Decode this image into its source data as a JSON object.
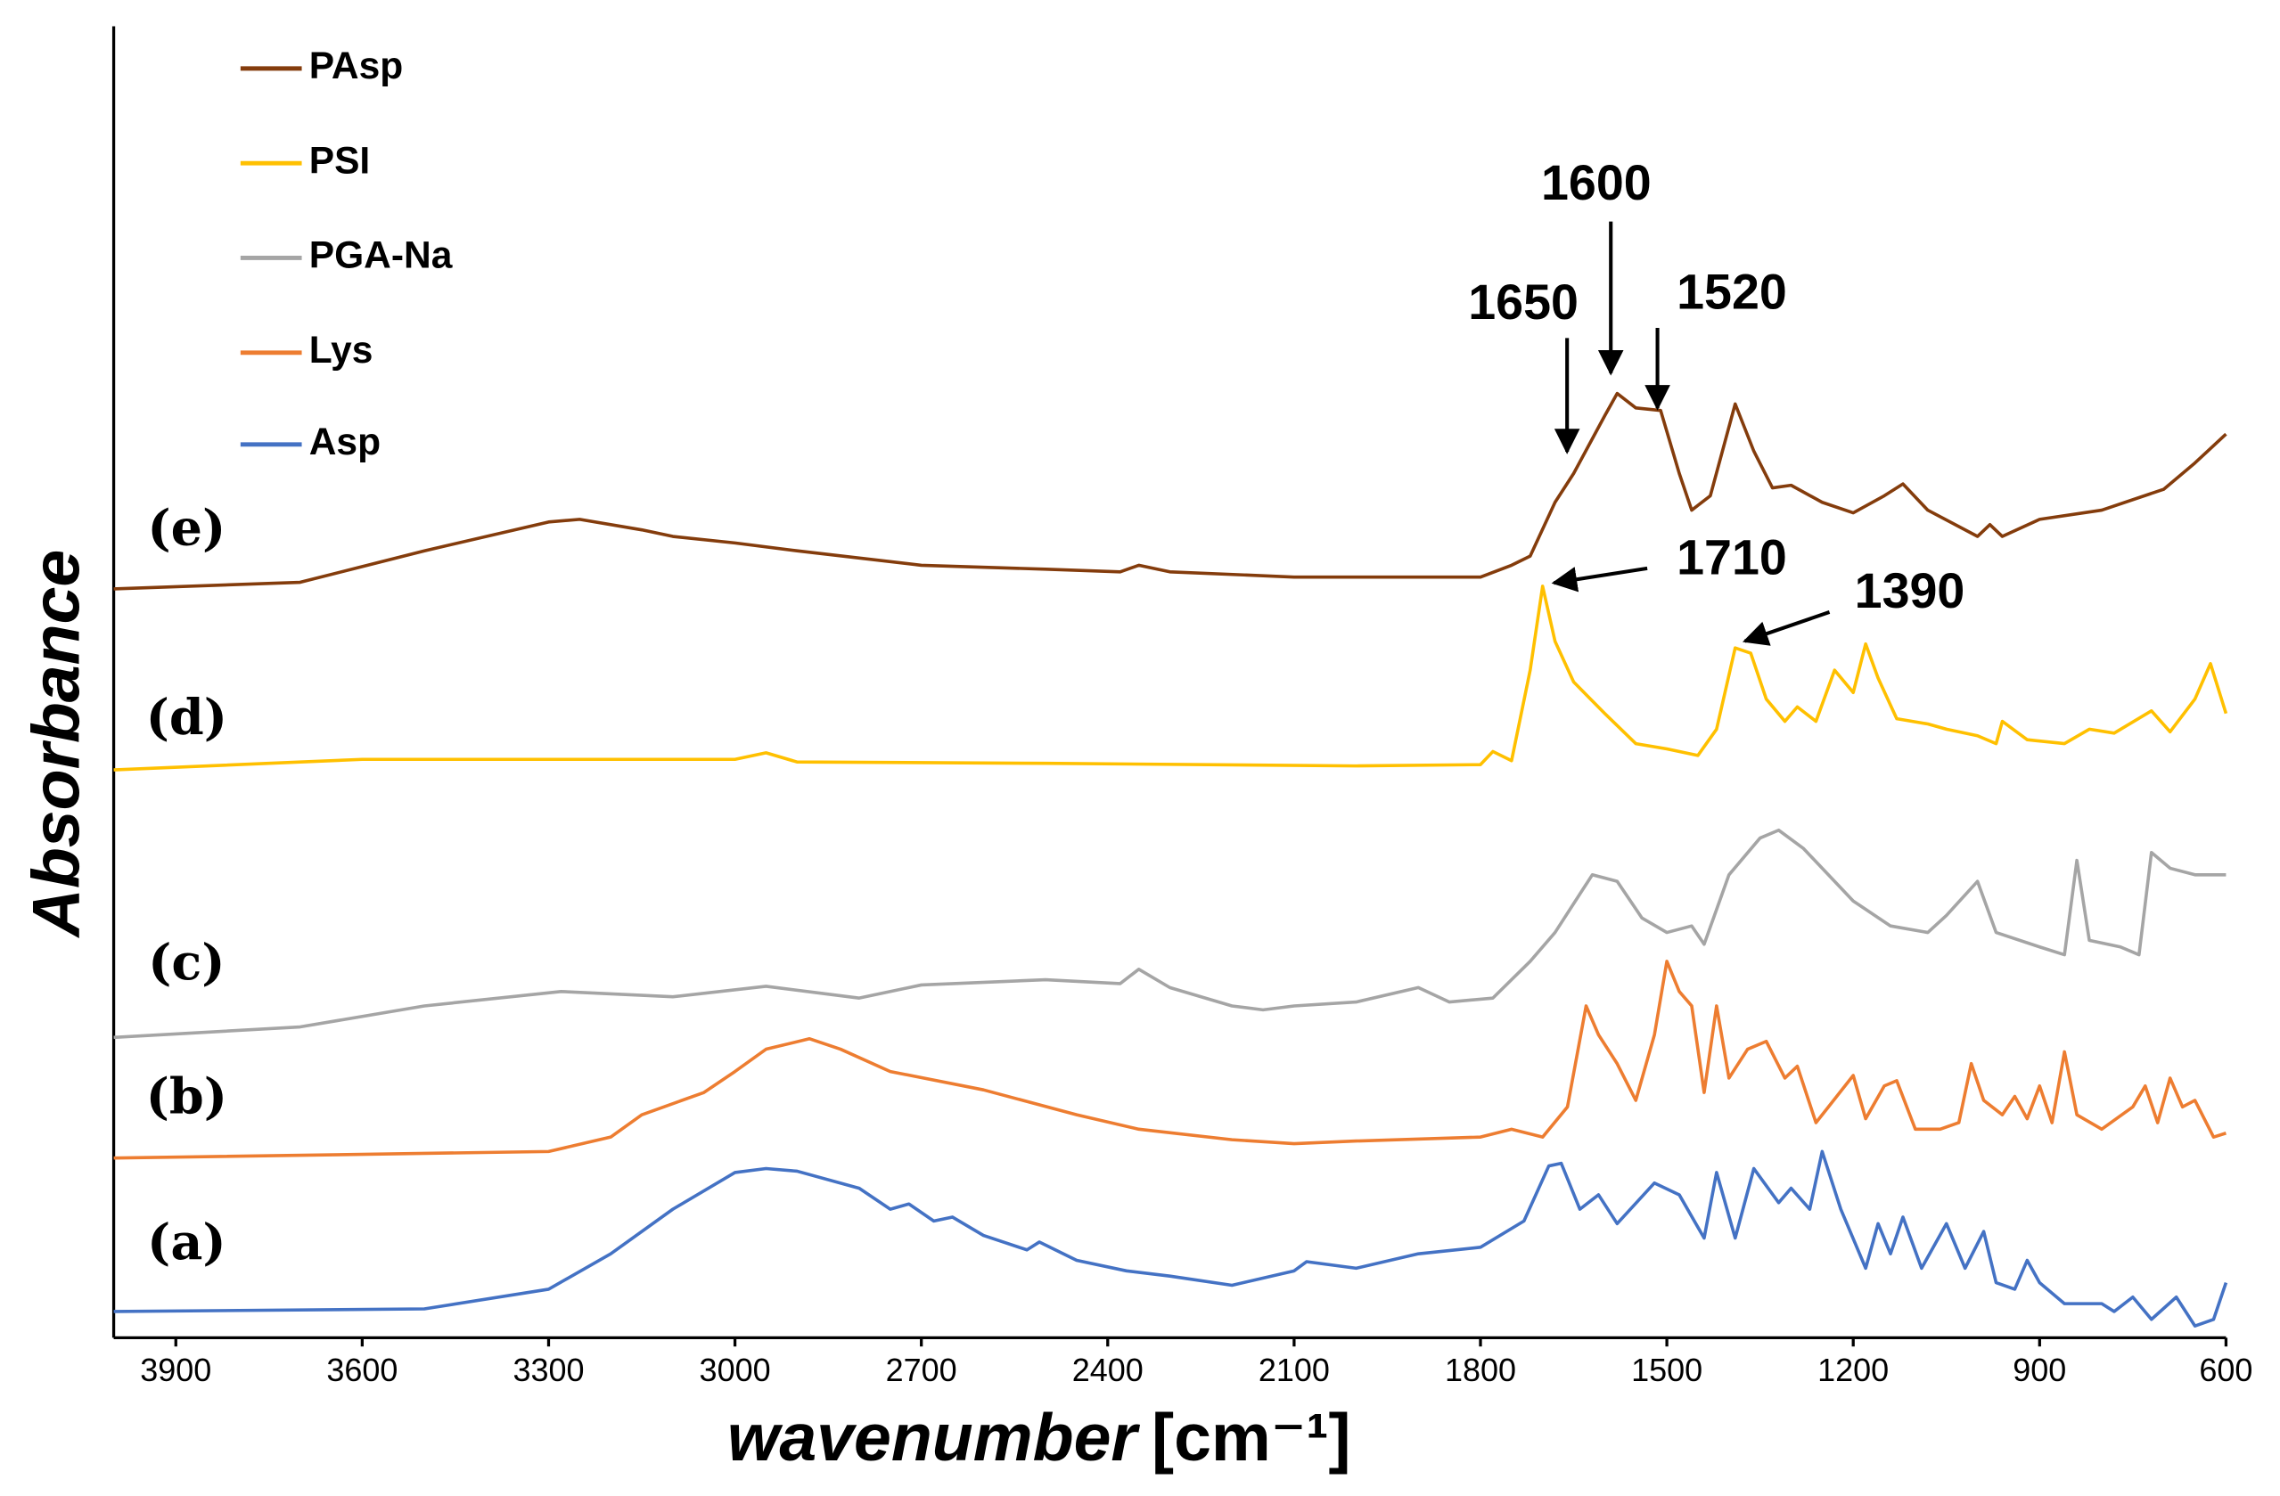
{
  "chart_data": {
    "type": "line",
    "x_label": "wavenumber",
    "x_unit": "[cm⁻¹]",
    "y_label": "Absorbance",
    "xlim": [
      4000,
      600
    ],
    "xticks": [
      3900,
      3600,
      3300,
      3000,
      2700,
      2400,
      2100,
      1800,
      1500,
      1200,
      900,
      600
    ],
    "ylim": [
      0,
      100
    ],
    "legend": "upper left",
    "curve_labels": [
      "(e)",
      "(d)",
      "(c)",
      "(b)",
      "(a)"
    ],
    "annotations": [
      "1650",
      "1600",
      "1520",
      "1710",
      "1390"
    ],
    "series": [
      {
        "name": "PAsp",
        "color": "#843c0c",
        "x": [
          4000,
          3700,
          3500,
          3300,
          3250,
          3150,
          3100,
          3000,
          2900,
          2700,
          2500,
          2380,
          2350,
          2300,
          2100,
          1800,
          1750,
          1720,
          1680,
          1650,
          1600,
          1580,
          1550,
          1510,
          1480,
          1460,
          1430,
          1390,
          1360,
          1330,
          1300,
          1250,
          1200,
          1150,
          1120,
          1080,
          1000,
          980,
          960,
          900,
          800,
          700,
          650,
          600
        ],
        "values": [
          57.1,
          57.6,
          60.0,
          62.2,
          62.4,
          61.6,
          61.1,
          60.6,
          60.0,
          58.9,
          58.6,
          58.4,
          58.9,
          58.4,
          58.0,
          58.0,
          58.9,
          59.6,
          63.7,
          65.9,
          70.3,
          72.0,
          70.9,
          70.7,
          65.9,
          63.1,
          64.2,
          71.2,
          67.6,
          64.8,
          65.0,
          63.7,
          62.9,
          64.2,
          65.1,
          63.1,
          61.1,
          62.0,
          61.1,
          62.4,
          63.1,
          64.7,
          66.7,
          68.9
        ]
      },
      {
        "name": "PSI",
        "color": "#ffc000",
        "x": [
          4000,
          3600,
          3000,
          2950,
          2900,
          2500,
          2000,
          1800,
          1780,
          1750,
          1720,
          1700,
          1680,
          1650,
          1600,
          1550,
          1500,
          1450,
          1420,
          1390,
          1365,
          1340,
          1310,
          1290,
          1260,
          1230,
          1200,
          1180,
          1160,
          1130,
          1080,
          1050,
          1000,
          970,
          960,
          920,
          860,
          820,
          780,
          720,
          690,
          650,
          625,
          600
        ],
        "values": [
          43.3,
          44.1,
          44.1,
          44.6,
          43.9,
          43.8,
          43.6,
          43.7,
          44.7,
          44.0,
          50.9,
          57.3,
          53.1,
          50.0,
          47.6,
          45.3,
          44.9,
          44.4,
          46.4,
          52.6,
          52.2,
          48.7,
          47.0,
          48.1,
          47.0,
          50.9,
          49.2,
          52.9,
          50.3,
          47.2,
          46.8,
          46.4,
          45.9,
          45.3,
          47.0,
          45.6,
          45.3,
          46.4,
          46.1,
          47.8,
          46.2,
          48.7,
          51.4,
          47.6
        ]
      },
      {
        "name": "PGA-Na",
        "color": "#a5a5a5",
        "x": [
          4000,
          3700,
          3500,
          3280,
          3100,
          2950,
          2800,
          2700,
          2500,
          2380,
          2350,
          2300,
          2200,
          2150,
          2100,
          2000,
          1900,
          1850,
          1780,
          1720,
          1680,
          1620,
          1580,
          1540,
          1500,
          1460,
          1440,
          1400,
          1350,
          1320,
          1280,
          1200,
          1140,
          1080,
          1050,
          1000,
          970,
          900,
          860,
          840,
          820,
          770,
          740,
          720,
          690,
          650,
          600
        ],
        "values": [
          22.9,
          23.7,
          25.3,
          26.4,
          26.0,
          26.8,
          25.9,
          26.9,
          27.3,
          27.0,
          28.1,
          26.7,
          25.3,
          25.0,
          25.3,
          25.6,
          26.7,
          25.6,
          25.9,
          28.7,
          30.9,
          35.3,
          34.8,
          32.0,
          30.9,
          31.4,
          30.0,
          35.3,
          38.1,
          38.7,
          37.3,
          33.3,
          31.4,
          30.9,
          32.2,
          34.8,
          30.9,
          29.8,
          29.2,
          36.4,
          30.3,
          29.8,
          29.2,
          37.0,
          35.8,
          35.3,
          35.3
        ]
      },
      {
        "name": "Lys",
        "color": "#ed7d31",
        "x": [
          4000,
          3300,
          3200,
          3150,
          3050,
          3000,
          2950,
          2880,
          2830,
          2750,
          2600,
          2450,
          2350,
          2200,
          2100,
          2000,
          1800,
          1750,
          1700,
          1660,
          1630,
          1610,
          1580,
          1550,
          1520,
          1500,
          1480,
          1460,
          1440,
          1420,
          1400,
          1370,
          1340,
          1310,
          1290,
          1260,
          1240,
          1200,
          1180,
          1150,
          1130,
          1100,
          1060,
          1030,
          1010,
          990,
          960,
          940,
          920,
          900,
          880,
          860,
          840,
          800,
          750,
          730,
          710,
          690,
          670,
          650,
          620,
          600
        ],
        "values": [
          13.7,
          14.2,
          15.3,
          17.0,
          18.7,
          20.3,
          22.0,
          22.8,
          22.0,
          20.3,
          18.9,
          17.0,
          15.9,
          15.1,
          14.8,
          15.0,
          15.3,
          15.9,
          15.3,
          17.6,
          25.3,
          23.1,
          20.9,
          18.1,
          23.1,
          28.7,
          26.4,
          25.3,
          18.7,
          25.3,
          19.8,
          22.0,
          22.6,
          19.8,
          20.7,
          16.4,
          17.6,
          20.0,
          16.7,
          19.2,
          19.6,
          15.9,
          15.9,
          16.4,
          20.9,
          18.1,
          17.0,
          18.4,
          16.7,
          19.2,
          16.4,
          21.8,
          17.0,
          15.9,
          17.6,
          19.2,
          16.4,
          19.8,
          17.6,
          18.1,
          15.3,
          15.6
        ]
      },
      {
        "name": "Asp",
        "color": "#4472c4",
        "x": [
          4000,
          3500,
          3300,
          3200,
          3100,
          3000,
          2950,
          2900,
          2800,
          2750,
          2720,
          2680,
          2650,
          2600,
          2530,
          2510,
          2450,
          2370,
          2300,
          2200,
          2100,
          2080,
          2000,
          1900,
          1800,
          1730,
          1690,
          1670,
          1640,
          1610,
          1580,
          1520,
          1480,
          1440,
          1420,
          1390,
          1360,
          1320,
          1300,
          1270,
          1250,
          1220,
          1180,
          1160,
          1140,
          1120,
          1090,
          1050,
          1020,
          990,
          970,
          940,
          920,
          900,
          860,
          800,
          780,
          750,
          720,
          680,
          650,
          620,
          600
        ],
        "values": [
          2.0,
          2.2,
          3.7,
          6.4,
          9.8,
          12.6,
          12.9,
          12.7,
          11.4,
          9.8,
          10.2,
          8.9,
          9.2,
          7.8,
          6.7,
          7.3,
          5.9,
          5.1,
          4.7,
          4.0,
          5.1,
          5.8,
          5.3,
          6.4,
          6.9,
          8.9,
          13.1,
          13.3,
          9.8,
          10.9,
          8.7,
          11.8,
          10.9,
          7.6,
          12.6,
          7.6,
          12.9,
          10.3,
          11.4,
          9.8,
          14.2,
          9.8,
          5.3,
          8.7,
          6.4,
          9.2,
          5.3,
          8.7,
          5.3,
          8.1,
          4.2,
          3.7,
          5.9,
          4.2,
          2.6,
          2.6,
          2.0,
          3.1,
          1.4,
          3.1,
          0.9,
          1.4,
          4.2
        ]
      }
    ]
  }
}
